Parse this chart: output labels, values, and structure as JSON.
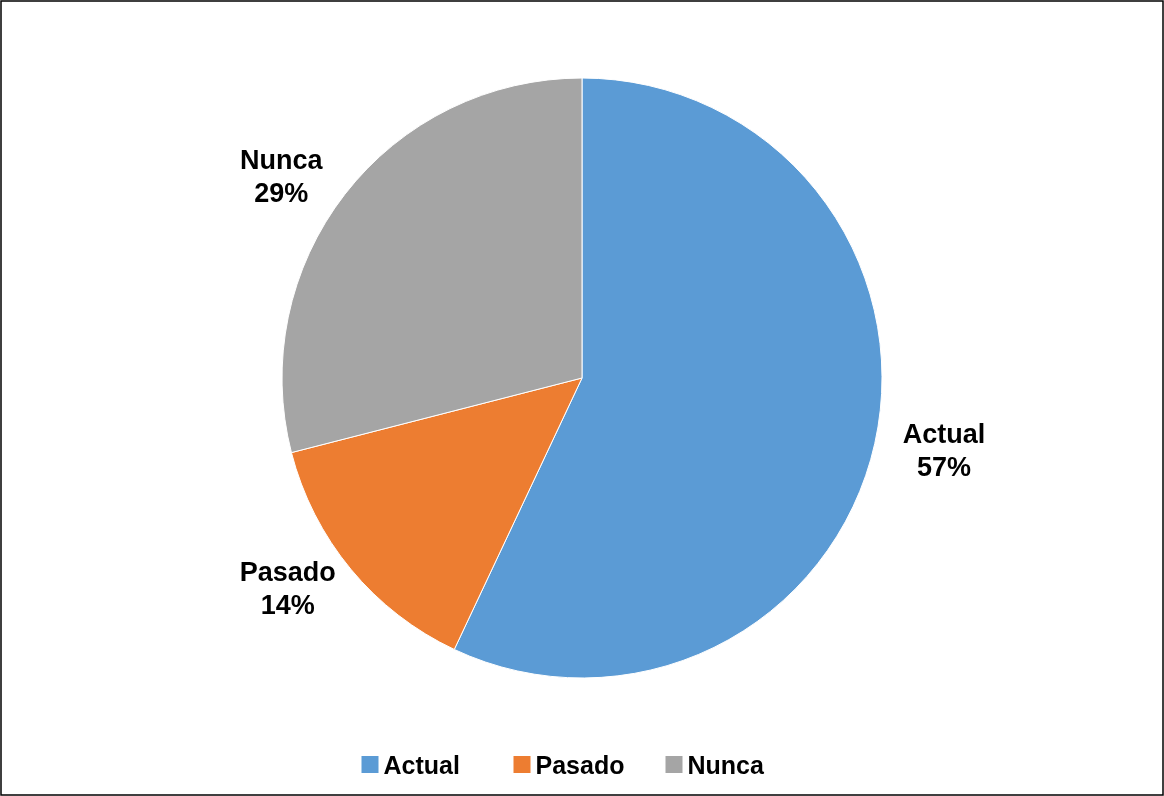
{
  "chart_data": {
    "type": "pie",
    "categories": [
      "Actual",
      "Pasado",
      "Nunca"
    ],
    "values": [
      57,
      14,
      29
    ],
    "colors": [
      "#5b9bd5",
      "#ed7d31",
      "#a5a5a5"
    ],
    "value_labels": [
      "57%",
      "14%",
      "29%"
    ],
    "legend": "bottom"
  }
}
